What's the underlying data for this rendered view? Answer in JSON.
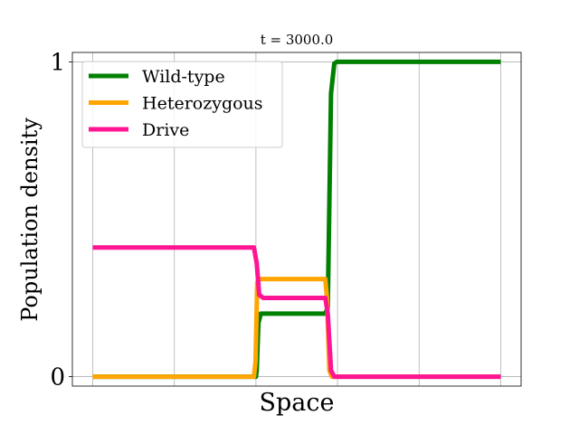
{
  "chart_data": {
    "type": "line",
    "title": "t = 3000.0",
    "xlabel": "Space",
    "ylabel": "Population density",
    "xlim": [
      -0.05,
      1.05
    ],
    "ylim": [
      -0.03,
      1.03
    ],
    "yticks": [
      {
        "value": 0,
        "label": "0"
      },
      {
        "value": 1,
        "label": "1"
      }
    ],
    "x_gridlines": [
      0,
      0.2,
      0.4,
      0.6,
      0.8,
      1.0
    ],
    "y_gridlines": [
      0,
      1
    ],
    "grid": true,
    "legend_position": "top-left",
    "series": [
      {
        "name": "Wild-type",
        "color": "#008000",
        "points": [
          [
            0,
            0
          ],
          [
            0.4,
            0
          ],
          [
            0.402,
            0.02
          ],
          [
            0.406,
            0.17
          ],
          [
            0.412,
            0.2
          ],
          [
            0.57,
            0.2
          ],
          [
            0.576,
            0.22
          ],
          [
            0.584,
            0.9
          ],
          [
            0.592,
            0.995
          ],
          [
            0.598,
            1
          ],
          [
            1.0,
            1
          ]
        ]
      },
      {
        "name": "Heterozygous",
        "color": "#ffa500",
        "points": [
          [
            0,
            0
          ],
          [
            0.395,
            0
          ],
          [
            0.399,
            0.05
          ],
          [
            0.403,
            0.3
          ],
          [
            0.41,
            0.31
          ],
          [
            0.57,
            0.31
          ],
          [
            0.574,
            0.25
          ],
          [
            0.58,
            0.02
          ],
          [
            0.586,
            0
          ],
          [
            1.0,
            0
          ]
        ]
      },
      {
        "name": "Drive",
        "color": "#ff1493",
        "points": [
          [
            0,
            0.41
          ],
          [
            0.395,
            0.41
          ],
          [
            0.402,
            0.36
          ],
          [
            0.408,
            0.26
          ],
          [
            0.418,
            0.25
          ],
          [
            0.57,
            0.25
          ],
          [
            0.576,
            0.2
          ],
          [
            0.584,
            0.02
          ],
          [
            0.592,
            0
          ],
          [
            1.0,
            0
          ]
        ]
      }
    ]
  }
}
